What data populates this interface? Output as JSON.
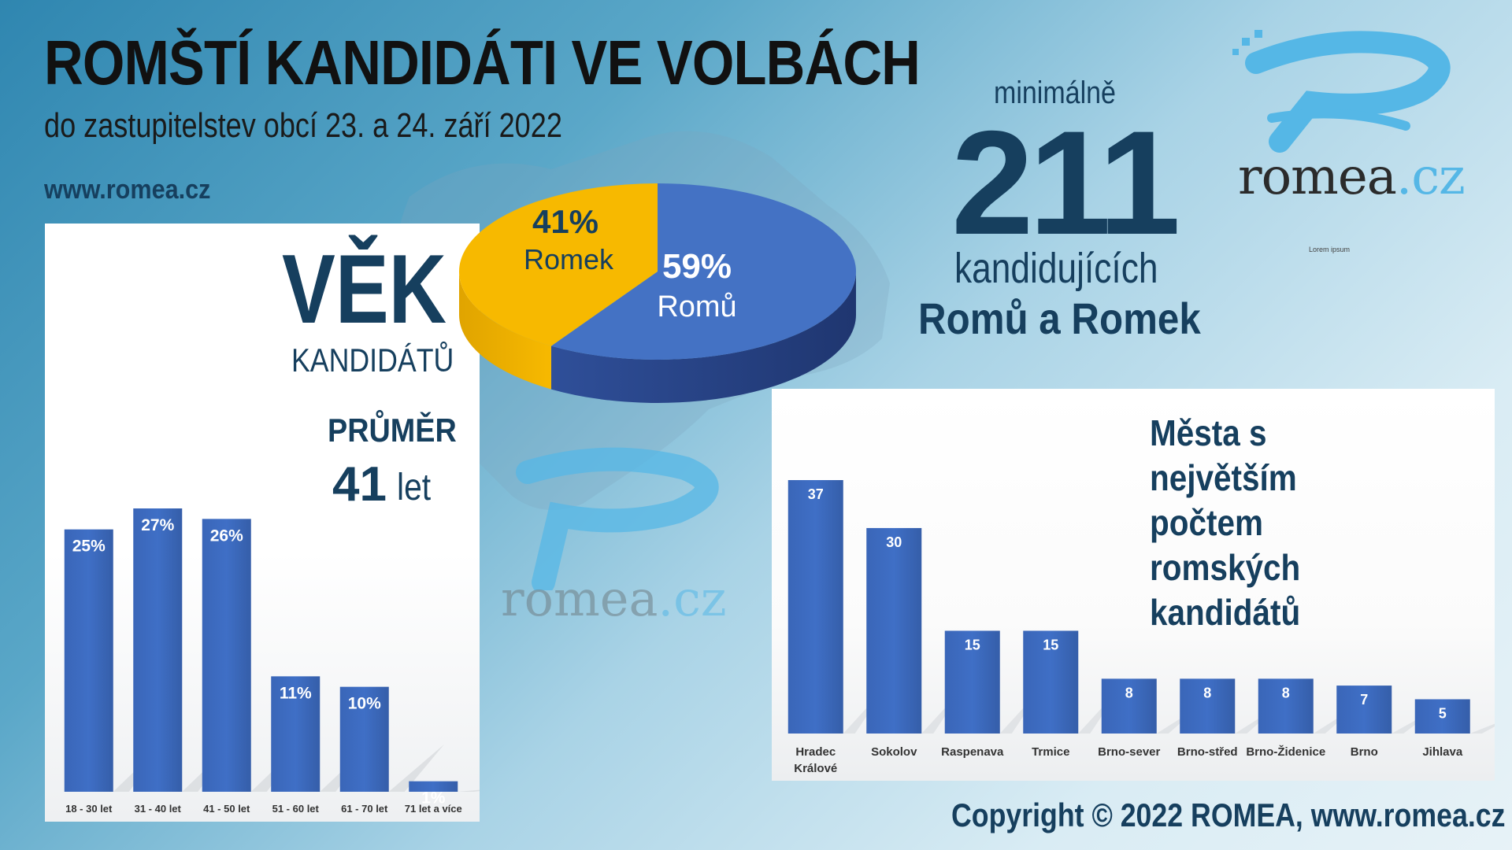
{
  "header": {
    "title": "ROMŠTÍ KANDIDÁTI VE VOLBÁCH",
    "subtitle": "do zastupitelstev obcí 23. a 24. září 2022",
    "site": "www.romea.cz"
  },
  "logo": {
    "name": "romea",
    "tld": ".cz",
    "caption": "Lorem ipsum",
    "icon": "romea-r-logo-icon"
  },
  "age_panel": {
    "heading": "VĚK",
    "subheading": "KANDIDÁTŮ",
    "avg_label": "PRŮMĚR",
    "avg_value": "41",
    "avg_unit": "let"
  },
  "summary": {
    "prefix": "minimálně",
    "count": "211",
    "line1": "kandidujících",
    "line2": "Romů a Romek"
  },
  "cities_panel": {
    "title": "Města s největším počtem romských kandidátů"
  },
  "footer": {
    "copyright": "Copyright © 2022 ROMEA, www.romea.cz"
  },
  "colors": {
    "bar": "#3f6fc6",
    "pie_blue": "#4472c4",
    "pie_gold": "#f7b900",
    "text_dark": "#163f5e"
  },
  "chart_data": [
    {
      "type": "bar",
      "title": "VĚK KANDIDÁTŮ",
      "categories": [
        "18 - 30 let",
        "31 - 40 let",
        "41 - 50 let",
        "51 - 60 let",
        "61 - 70 let",
        "71 let a více"
      ],
      "values": [
        25,
        27,
        26,
        11,
        10,
        1
      ],
      "labels": [
        "25%",
        "27%",
        "26%",
        "11%",
        "10%",
        "1%"
      ],
      "ylim": [
        0,
        30
      ],
      "grid": false
    },
    {
      "type": "pie",
      "slices": [
        {
          "label": "Romů",
          "value": 59,
          "text": "59%",
          "color": "#4472c4"
        },
        {
          "label": "Romek",
          "value": 41,
          "text": "41%",
          "color": "#f7b900"
        }
      ]
    },
    {
      "type": "bar",
      "title": "Města s největším počtem romských kandidátů",
      "categories": [
        "Hradec Králové",
        "Sokolov",
        "Raspenava",
        "Trmice",
        "Brno-sever",
        "Brno-střed",
        "Brno-Židenice",
        "Brno",
        "Jihlava"
      ],
      "values": [
        37,
        30,
        15,
        15,
        8,
        8,
        8,
        7,
        5
      ],
      "ylim": [
        0,
        40
      ],
      "grid": false
    }
  ]
}
